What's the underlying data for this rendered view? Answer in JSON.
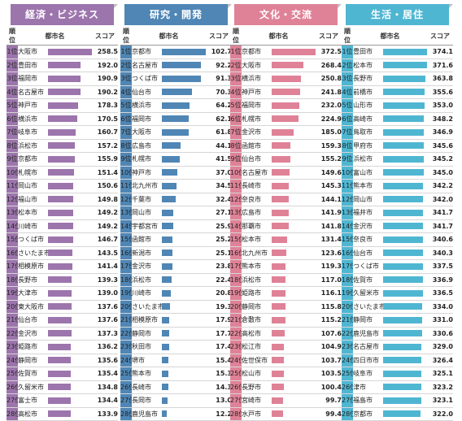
{
  "headers": {
    "rank": "順位",
    "city": "都市名",
    "score": "スコア"
  },
  "panels": [
    {
      "title": "経済・ビジネス",
      "color": "#9d75ad",
      "rows": [
        {
          "rank": "1位",
          "city": "大阪市",
          "score": "258.5"
        },
        {
          "rank": "2位",
          "city": "豊田市",
          "score": "192.0"
        },
        {
          "rank": "3位",
          "city": "福岡市",
          "score": "190.9"
        },
        {
          "rank": "4位",
          "city": "名古屋市",
          "score": "190.2"
        },
        {
          "rank": "5位",
          "city": "神戸市",
          "score": "178.3"
        },
        {
          "rank": "6位",
          "city": "横浜市",
          "score": "170.5"
        },
        {
          "rank": "7位",
          "city": "岐阜市",
          "score": "160.7"
        },
        {
          "rank": "8位",
          "city": "浜松市",
          "score": "157.2"
        },
        {
          "rank": "9位",
          "city": "京都市",
          "score": "155.9"
        },
        {
          "rank": "10位",
          "city": "札幌市",
          "score": "151.4"
        },
        {
          "rank": "11位",
          "city": "岡山市",
          "score": "150.6"
        },
        {
          "rank": "12位",
          "city": "福山市",
          "score": "149.8"
        },
        {
          "rank": "13位",
          "city": "松本市",
          "score": "149.2"
        },
        {
          "rank": "14位",
          "city": "川崎市",
          "score": "149.2"
        },
        {
          "rank": "15位",
          "city": "つくば市",
          "score": "146.7"
        },
        {
          "rank": "16位",
          "city": "さいたま市",
          "score": "143.5"
        },
        {
          "rank": "17位",
          "city": "相模原市",
          "score": "141.4"
        },
        {
          "rank": "18位",
          "city": "長野市",
          "score": "139.3"
        },
        {
          "rank": "19位",
          "city": "大津市",
          "score": "139.0"
        },
        {
          "rank": "20位",
          "city": "東大阪市",
          "score": "137.6"
        },
        {
          "rank": "21位",
          "city": "仙台市",
          "score": "137.6"
        },
        {
          "rank": "22位",
          "city": "金沢市",
          "score": "137.3"
        },
        {
          "rank": "23位",
          "city": "姫路市",
          "score": "136.2"
        },
        {
          "rank": "24位",
          "city": "静岡市",
          "score": "135.6"
        },
        {
          "rank": "25位",
          "city": "佐賀市",
          "score": "135.4"
        },
        {
          "rank": "26位",
          "city": "久留米市",
          "score": "134.8"
        },
        {
          "rank": "27位",
          "city": "富士市",
          "score": "134.4"
        },
        {
          "rank": "28位",
          "city": "高松市",
          "score": "133.9"
        }
      ]
    },
    {
      "title": "研究・開発",
      "color": "#4f86b5",
      "rows": [
        {
          "rank": "1位",
          "city": "京都市",
          "score": "102.7"
        },
        {
          "rank": "2位",
          "city": "名古屋市",
          "score": "92.2"
        },
        {
          "rank": "3位",
          "city": "つくば市",
          "score": "91.3"
        },
        {
          "rank": "4位",
          "city": "仙台市",
          "score": "70.3"
        },
        {
          "rank": "5位",
          "city": "横浜市",
          "score": "64.2"
        },
        {
          "rank": "6位",
          "city": "福岡市",
          "score": "62.1"
        },
        {
          "rank": "7位",
          "city": "大阪市",
          "score": "61.8"
        },
        {
          "rank": "8位",
          "city": "広島市",
          "score": "44.1"
        },
        {
          "rank": "9位",
          "city": "札幌市",
          "score": "41.5"
        },
        {
          "rank": "10位",
          "city": "神戸市",
          "score": "37.0"
        },
        {
          "rank": "11位",
          "city": "北九州市",
          "score": "34.5"
        },
        {
          "rank": "12位",
          "city": "千葉市",
          "score": "32.4"
        },
        {
          "rank": "13位",
          "city": "岡山市",
          "score": "27.1"
        },
        {
          "rank": "14位",
          "city": "宇都宮市",
          "score": "25.9"
        },
        {
          "rank": "15位",
          "city": "函館市",
          "score": "25.2"
        },
        {
          "rank": "16位",
          "city": "新潟市",
          "score": "25.1"
        },
        {
          "rank": "17位",
          "city": "金沢市",
          "score": "23.8"
        },
        {
          "rank": "18位",
          "city": "浜松市",
          "score": "22.4"
        },
        {
          "rank": "19位",
          "city": "川崎市",
          "score": "20.8"
        },
        {
          "rank": "20位",
          "city": "さいたま市",
          "score": "19.3"
        },
        {
          "rank": "21位",
          "city": "相模原市",
          "score": "17.9"
        },
        {
          "rank": "22位",
          "city": "静岡市",
          "score": "17.7"
        },
        {
          "rank": "23位",
          "city": "秋田市",
          "score": "17.4"
        },
        {
          "rank": "24位",
          "city": "堺市",
          "score": "15.4"
        },
        {
          "rank": "25位",
          "city": "熊本市",
          "score": "15.3"
        },
        {
          "rank": "26位",
          "city": "長崎市",
          "score": "14.3"
        },
        {
          "rank": "27位",
          "city": "長岡市",
          "score": "13.0"
        },
        {
          "rank": "28位",
          "city": "鹿児島市",
          "score": "12.2"
        }
      ]
    },
    {
      "title": "文化・交流",
      "color": "#df8297",
      "rows": [
        {
          "rank": "1位",
          "city": "京都市",
          "score": "372.5"
        },
        {
          "rank": "2位",
          "city": "大阪市",
          "score": "268.4"
        },
        {
          "rank": "3位",
          "city": "横浜市",
          "score": "250.8"
        },
        {
          "rank": "4位",
          "city": "神戸市",
          "score": "241.8"
        },
        {
          "rank": "5位",
          "city": "福岡市",
          "score": "232.0"
        },
        {
          "rank": "6位",
          "city": "札幌市",
          "score": "224.9"
        },
        {
          "rank": "7位",
          "city": "金沢市",
          "score": "185.0"
        },
        {
          "rank": "8位",
          "city": "函館市",
          "score": "159.3"
        },
        {
          "rank": "9位",
          "city": "仙台市",
          "score": "155.2"
        },
        {
          "rank": "10位",
          "city": "名古屋市",
          "score": "149.6"
        },
        {
          "rank": "11位",
          "city": "長崎市",
          "score": "145.3"
        },
        {
          "rank": "12位",
          "city": "奈良市",
          "score": "144.1"
        },
        {
          "rank": "13位",
          "city": "広島市",
          "score": "141.9"
        },
        {
          "rank": "14位",
          "city": "那覇市",
          "score": "141.8"
        },
        {
          "rank": "15位",
          "city": "松本市",
          "score": "131.4"
        },
        {
          "rank": "16位",
          "city": "北九州市",
          "score": "123.6"
        },
        {
          "rank": "17位",
          "city": "熊本市",
          "score": "119.3"
        },
        {
          "rank": "18位",
          "city": "浜松市",
          "score": "117.0"
        },
        {
          "rank": "19位",
          "city": "姫路市",
          "score": "116.1"
        },
        {
          "rank": "20位",
          "city": "静岡市",
          "score": "115.8"
        },
        {
          "rank": "21位",
          "city": "倉敷市",
          "score": "115.2"
        },
        {
          "rank": "22位",
          "city": "高松市",
          "score": "107.6"
        },
        {
          "rank": "23位",
          "city": "松江市",
          "score": "104.9"
        },
        {
          "rank": "24位",
          "city": "佐世保市",
          "score": "103.7"
        },
        {
          "rank": "25位",
          "city": "松山市",
          "score": "103.5"
        },
        {
          "rank": "26位",
          "city": "長野市",
          "score": "100.4"
        },
        {
          "rank": "27位",
          "city": "宮崎市",
          "score": "99.7"
        },
        {
          "rank": "28位",
          "city": "水戸市",
          "score": "99.4"
        }
      ]
    },
    {
      "title": "生活・居住",
      "color": "#4fb6d2",
      "rows": [
        {
          "rank": "1位",
          "city": "豊田市",
          "score": "374.1"
        },
        {
          "rank": "2位",
          "city": "松本市",
          "score": "371.6"
        },
        {
          "rank": "3位",
          "city": "長野市",
          "score": "363.8"
        },
        {
          "rank": "4位",
          "city": "前橋市",
          "score": "355.6"
        },
        {
          "rank": "5位",
          "city": "山形市",
          "score": "353.0"
        },
        {
          "rank": "6位",
          "city": "高崎市",
          "score": "348.2"
        },
        {
          "rank": "7位",
          "city": "鳥取市",
          "score": "346.9"
        },
        {
          "rank": "8位",
          "city": "甲府市",
          "score": "345.6"
        },
        {
          "rank": "9位",
          "city": "浜松市",
          "score": "345.2"
        },
        {
          "rank": "10位",
          "city": "富山市",
          "score": "345.0"
        },
        {
          "rank": "11位",
          "city": "熊本市",
          "score": "342.2"
        },
        {
          "rank": "12位",
          "city": "岡山市",
          "score": "342.0"
        },
        {
          "rank": "13位",
          "city": "福井市",
          "score": "341.7"
        },
        {
          "rank": "14位",
          "city": "金沢市",
          "score": "341.7"
        },
        {
          "rank": "15位",
          "city": "奈良市",
          "score": "340.6"
        },
        {
          "rank": "16位",
          "city": "仙台市",
          "score": "340.3"
        },
        {
          "rank": "17位",
          "city": "つくば市",
          "score": "337.5"
        },
        {
          "rank": "18位",
          "city": "佐賀市",
          "score": "336.9"
        },
        {
          "rank": "19位",
          "city": "久留米市",
          "score": "336.5"
        },
        {
          "rank": "20位",
          "city": "さいたま市",
          "score": "334.0"
        },
        {
          "rank": "21位",
          "city": "静岡市",
          "score": "331.0"
        },
        {
          "rank": "22位",
          "city": "鹿児島市",
          "score": "330.6"
        },
        {
          "rank": "23位",
          "city": "名古屋市",
          "score": "329.0"
        },
        {
          "rank": "24位",
          "city": "四日市市",
          "score": "326.4"
        },
        {
          "rank": "25位",
          "city": "岐阜市",
          "score": "325.1"
        },
        {
          "rank": "26位",
          "city": "津市",
          "score": "323.2"
        },
        {
          "rank": "27位",
          "city": "福島市",
          "score": "323.1"
        },
        {
          "rank": "28位",
          "city": "京都市",
          "score": "322.0"
        }
      ]
    }
  ]
}
